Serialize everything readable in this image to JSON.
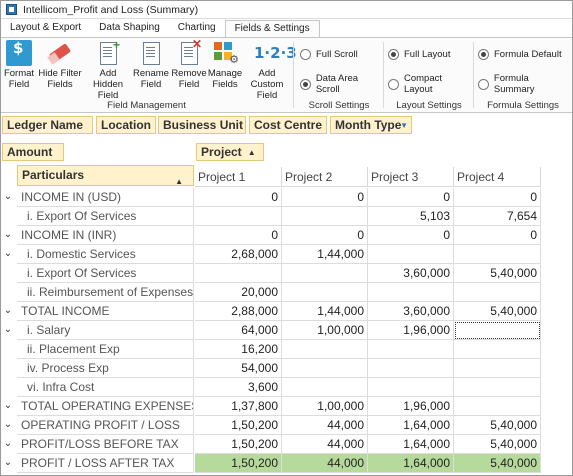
{
  "window": {
    "title": "Intellicom_Profit and Loss (Summary)"
  },
  "tabs": [
    {
      "label": "Layout & Export",
      "active": false
    },
    {
      "label": "Data Shaping",
      "active": false
    },
    {
      "label": "Charting",
      "active": false
    },
    {
      "label": "Fields & Settings",
      "active": true
    }
  ],
  "ribbon": {
    "field_management": {
      "group_label": "Field Management",
      "buttons": [
        {
          "label": "Format Field",
          "icon": "format-field-icon"
        },
        {
          "label": "Hide Filter Fields",
          "icon": "eraser-icon"
        },
        {
          "label": "Add Hidden Field",
          "icon": "add-field-icon"
        },
        {
          "label": "Rename Field",
          "icon": "rename-field-icon"
        },
        {
          "label": "Remove Field",
          "icon": "remove-field-icon"
        },
        {
          "label": "Manage Fields",
          "icon": "manage-fields-icon"
        },
        {
          "label": "Add Custom Field",
          "icon": "custom-field-icon",
          "glyph": "1·2·3"
        }
      ]
    },
    "scroll_settings": {
      "group_label": "Scroll Settings",
      "options": [
        {
          "label": "Full Scroll",
          "selected": false
        },
        {
          "label": "Data Area Scroll",
          "selected": true
        }
      ]
    },
    "layout_settings": {
      "group_label": "Layout Settings",
      "options": [
        {
          "label": "Full Layout",
          "selected": true
        },
        {
          "label": "Compact Layout",
          "selected": false
        }
      ]
    },
    "formula_settings": {
      "group_label": "Formula Settings",
      "options": [
        {
          "label": "Formula Default",
          "selected": true
        },
        {
          "label": "Formula Summary",
          "selected": false
        }
      ]
    }
  },
  "filter_fields": [
    "Ledger Name",
    "Location",
    "Business Unit",
    "Cost Centre",
    "Month Type"
  ],
  "data_field": "Amount",
  "column_field": "Project",
  "row_field": "Particulars",
  "columns": [
    "Project 1",
    "Project 2",
    "Project 3",
    "Project 4"
  ],
  "rows": [
    {
      "label": "INCOME IN (USD)",
      "level": 0,
      "expander": true,
      "values": [
        "0",
        "0",
        "0",
        "0"
      ]
    },
    {
      "label": "i. Export Of Services",
      "level": 1,
      "expander": false,
      "values": [
        "",
        "",
        "5,103",
        "7,654"
      ]
    },
    {
      "label": "INCOME IN (INR)",
      "level": 0,
      "expander": true,
      "values": [
        "0",
        "0",
        "0",
        "0"
      ]
    },
    {
      "label": "i. Domestic Services",
      "level": 1,
      "expander": true,
      "values": [
        "2,68,000",
        "1,44,000",
        "",
        ""
      ]
    },
    {
      "label": "i. Export Of Services",
      "level": 1,
      "expander": false,
      "values": [
        "",
        "",
        "3,60,000",
        "5,40,000"
      ]
    },
    {
      "label": "ii. Reimbursement of Expenses",
      "level": 1,
      "expander": false,
      "values": [
        "20,000",
        "",
        "",
        ""
      ]
    },
    {
      "label": "TOTAL INCOME",
      "level": 0,
      "expander": true,
      "values": [
        "2,88,000",
        "1,44,000",
        "3,60,000",
        "5,40,000"
      ]
    },
    {
      "label": "i. Salary",
      "level": 1,
      "expander": true,
      "values": [
        "64,000",
        "1,00,000",
        "1,96,000",
        ""
      ]
    },
    {
      "label": "ii. Placement Exp",
      "level": 1,
      "expander": false,
      "values": [
        "16,200",
        "",
        "",
        ""
      ]
    },
    {
      "label": "iv. Process Exp",
      "level": 1,
      "expander": false,
      "values": [
        "54,000",
        "",
        "",
        ""
      ]
    },
    {
      "label": "vi. Infra Cost",
      "level": 1,
      "expander": false,
      "values": [
        "3,600",
        "",
        "",
        ""
      ]
    },
    {
      "label": "TOTAL OPERATING EXPENSES",
      "level": 0,
      "expander": true,
      "values": [
        "1,37,800",
        "1,00,000",
        "1,96,000",
        ""
      ]
    },
    {
      "label": "OPERATING PROFIT / LOSS",
      "level": 0,
      "expander": true,
      "values": [
        "1,50,200",
        "44,000",
        "1,64,000",
        "5,40,000"
      ]
    },
    {
      "label": "PROFIT/LOSS BEFORE TAX",
      "level": 0,
      "expander": true,
      "values": [
        "1,50,200",
        "44,000",
        "1,64,000",
        "5,40,000"
      ]
    },
    {
      "label": "PROFIT / LOSS AFTER TAX",
      "level": 0,
      "expander": true,
      "values": [
        "1,50,200",
        "44,000",
        "1,64,000",
        "5,40,000"
      ],
      "highlight": true
    }
  ],
  "colors": {
    "highlight": "#b6d99c",
    "field_button": "#fff2cc",
    "accent": "#2e75b6"
  }
}
